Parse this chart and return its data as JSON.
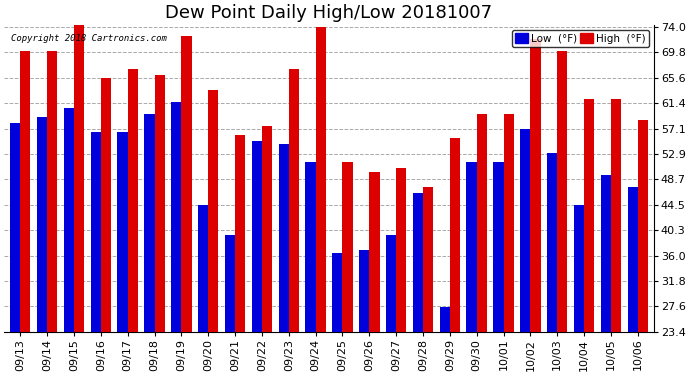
{
  "title": "Dew Point Daily High/Low 20181007",
  "copyright": "Copyright 2018 Cartronics.com",
  "ylabel_right_ticks": [
    23.4,
    27.6,
    31.8,
    36.0,
    40.3,
    44.5,
    48.7,
    52.9,
    57.1,
    61.4,
    65.6,
    69.8,
    74.0
  ],
  "dates": [
    "09/13",
    "09/14",
    "09/15",
    "09/16",
    "09/17",
    "09/18",
    "09/19",
    "09/20",
    "09/21",
    "09/22",
    "09/23",
    "09/24",
    "09/25",
    "09/26",
    "09/27",
    "09/28",
    "09/29",
    "09/30",
    "10/01",
    "10/02",
    "10/03",
    "10/04",
    "10/05",
    "10/06"
  ],
  "low_values": [
    58.0,
    59.0,
    60.5,
    56.5,
    56.5,
    59.5,
    61.5,
    44.5,
    39.5,
    55.0,
    54.5,
    51.5,
    36.5,
    37.0,
    39.5,
    46.5,
    27.5,
    51.5,
    51.5,
    57.0,
    53.0,
    44.5,
    49.5,
    47.5
  ],
  "high_values": [
    70.0,
    70.0,
    75.0,
    65.5,
    67.0,
    66.0,
    72.5,
    63.5,
    56.0,
    57.5,
    67.0,
    74.0,
    51.5,
    50.0,
    50.5,
    47.5,
    55.5,
    59.5,
    59.5,
    72.0,
    70.0,
    62.0,
    62.0,
    58.5
  ],
  "bar_low_color": "#0000dd",
  "bar_high_color": "#dd0000",
  "background_color": "#ffffff",
  "grid_color": "#aaaaaa",
  "title_fontsize": 13,
  "tick_fontsize": 8,
  "legend_low_label": "Low  (°F)",
  "legend_high_label": "High  (°F)",
  "ymin": 23.4,
  "ymax": 74.0,
  "bar_width": 0.38
}
